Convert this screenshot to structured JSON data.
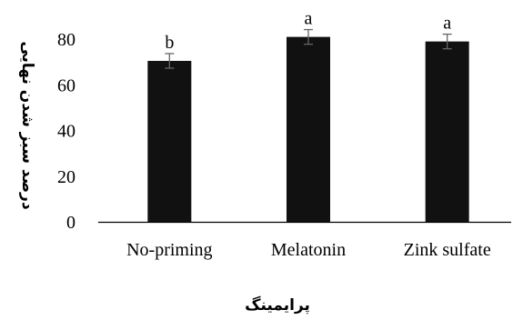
{
  "chart_data": {
    "type": "bar",
    "categories": [
      "No-priming",
      "Melatonin",
      "Zink sulfate"
    ],
    "values": [
      70.5,
      81,
      79
    ],
    "error": [
      3.2,
      3.2,
      3.2
    ],
    "significance_letters": [
      "b",
      "a",
      "a"
    ],
    "xlabel": "پرایمینگ",
    "ylabel": "درصد سبز شدن نهایی",
    "ylim": [
      0,
      90
    ],
    "yticks": [
      0,
      20,
      40,
      60,
      80
    ],
    "bar_color": "#111111",
    "grid": false,
    "legend": "none"
  }
}
